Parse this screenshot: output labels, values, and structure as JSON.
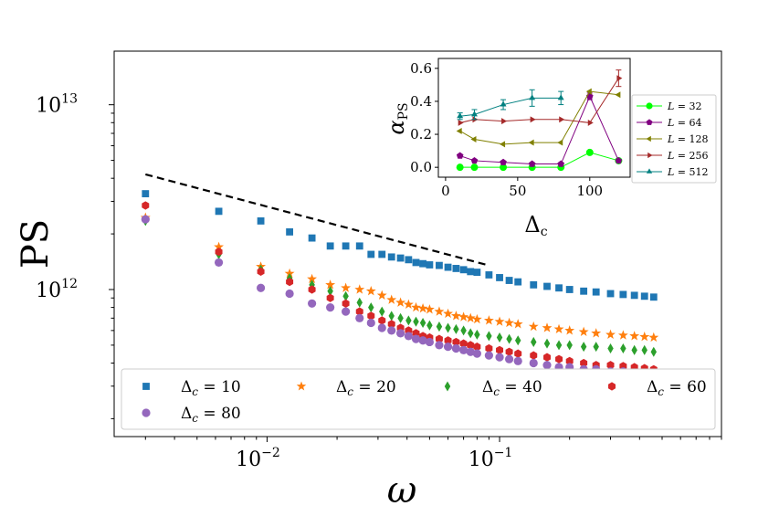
{
  "chart_data": [
    {
      "type": "scatter",
      "title": "",
      "xlabel": "ω",
      "ylabel": "PS",
      "xscale": "log",
      "yscale": "log",
      "xlim": [
        0.0022,
        0.9
      ],
      "ylim": [
        160000000000.0,
        19500000000000.0
      ],
      "x_ticks": [
        {
          "value": 0.01,
          "base": "10",
          "exp": "−2"
        },
        {
          "value": 0.1,
          "base": "10",
          "exp": "−1"
        }
      ],
      "y_ticks": [
        {
          "value": 1000000000000.0,
          "base": "10",
          "exp": "12"
        },
        {
          "value": 10000000000000.0,
          "base": "10",
          "exp": "13"
        }
      ],
      "legend": {
        "placement": "bottom",
        "columns": 4
      },
      "reference_line": {
        "style": "dashed",
        "color": "#000000",
        "x": [
          0.003,
          0.09
        ],
        "y": [
          4200000000000.0,
          1350000000000.0
        ]
      },
      "series": [
        {
          "name": "Δc = 10",
          "legend_base": "Δ",
          "legend_sub": "c",
          "legend_value": " = 10",
          "marker": "square",
          "color": "#1f77b4",
          "x": [
            0.003,
            0.0062,
            0.0094,
            0.0125,
            0.0156,
            0.0187,
            0.0218,
            0.025,
            0.028,
            0.0312,
            0.0343,
            0.0375,
            0.0406,
            0.0437,
            0.0468,
            0.05,
            0.055,
            0.06,
            0.065,
            0.07,
            0.075,
            0.08,
            0.09,
            0.1,
            0.11,
            0.12,
            0.14,
            0.16,
            0.18,
            0.2,
            0.23,
            0.26,
            0.3,
            0.34,
            0.38,
            0.42,
            0.46
          ],
          "y": [
            3300000000000.0,
            2650000000000.0,
            2350000000000.0,
            2050000000000.0,
            1900000000000.0,
            1720000000000.0,
            1720000000000.0,
            1720000000000.0,
            1550000000000.0,
            1550000000000.0,
            1500000000000.0,
            1480000000000.0,
            1450000000000.0,
            1400000000000.0,
            1380000000000.0,
            1360000000000.0,
            1350000000000.0,
            1320000000000.0,
            1300000000000.0,
            1280000000000.0,
            1250000000000.0,
            1240000000000.0,
            1200000000000.0,
            1160000000000.0,
            1120000000000.0,
            1100000000000.0,
            1060000000000.0,
            1040000000000.0,
            1020000000000.0,
            1000000000000.0,
            980000000000.0,
            970000000000.0,
            950000000000.0,
            940000000000.0,
            930000000000.0,
            920000000000.0,
            910000000000.0
          ]
        },
        {
          "name": "Δc = 20",
          "legend_base": "Δ",
          "legend_sub": "c",
          "legend_value": " = 20",
          "marker": "star",
          "color": "#ff7f0e",
          "x": [
            0.003,
            0.0062,
            0.0094,
            0.0125,
            0.0156,
            0.0187,
            0.0218,
            0.025,
            0.028,
            0.0312,
            0.0343,
            0.0375,
            0.0406,
            0.0437,
            0.0468,
            0.05,
            0.055,
            0.06,
            0.065,
            0.07,
            0.075,
            0.08,
            0.09,
            0.1,
            0.11,
            0.12,
            0.14,
            0.16,
            0.18,
            0.2,
            0.23,
            0.26,
            0.3,
            0.34,
            0.38,
            0.42,
            0.46
          ],
          "y": [
            2450000000000.0,
            1700000000000.0,
            1330000000000.0,
            1220000000000.0,
            1140000000000.0,
            1060000000000.0,
            1020000000000.0,
            1000000000000.0,
            980000000000.0,
            930000000000.0,
            880000000000.0,
            850000000000.0,
            830000000000.0,
            800000000000.0,
            790000000000.0,
            780000000000.0,
            760000000000.0,
            740000000000.0,
            720000000000.0,
            710000000000.0,
            700000000000.0,
            690000000000.0,
            680000000000.0,
            670000000000.0,
            660000000000.0,
            650000000000.0,
            630000000000.0,
            620000000000.0,
            610000000000.0,
            600000000000.0,
            590000000000.0,
            580000000000.0,
            570000000000.0,
            565000000000.0,
            560000000000.0,
            555000000000.0,
            550000000000.0
          ]
        },
        {
          "name": "Δc = 40",
          "legend_base": "Δ",
          "legend_sub": "c",
          "legend_value": " = 40",
          "marker": "diamond",
          "color": "#2ca02c",
          "x": [
            0.003,
            0.0062,
            0.0094,
            0.0125,
            0.0156,
            0.0187,
            0.0218,
            0.025,
            0.028,
            0.0312,
            0.0343,
            0.0375,
            0.0406,
            0.0437,
            0.0468,
            0.05,
            0.055,
            0.06,
            0.065,
            0.07,
            0.075,
            0.08,
            0.09,
            0.1,
            0.11,
            0.12,
            0.14,
            0.16,
            0.18,
            0.2,
            0.23,
            0.26,
            0.3,
            0.34,
            0.38,
            0.42,
            0.46
          ],
          "y": [
            2350000000000.0,
            1550000000000.0,
            1280000000000.0,
            1150000000000.0,
            1060000000000.0,
            980000000000.0,
            920000000000.0,
            850000000000.0,
            800000000000.0,
            760000000000.0,
            720000000000.0,
            700000000000.0,
            680000000000.0,
            670000000000.0,
            660000000000.0,
            640000000000.0,
            630000000000.0,
            620000000000.0,
            610000000000.0,
            600000000000.0,
            580000000000.0,
            570000000000.0,
            560000000000.0,
            550000000000.0,
            540000000000.0,
            530000000000.0,
            520000000000.0,
            510000000000.0,
            500000000000.0,
            500000000000.0,
            490000000000.0,
            490000000000.0,
            480000000000.0,
            480000000000.0,
            470000000000.0,
            470000000000.0,
            460000000000.0
          ]
        },
        {
          "name": "Δc = 60",
          "legend_base": "Δ",
          "legend_sub": "c",
          "legend_value": " = 60",
          "marker": "hexagon",
          "color": "#d62728",
          "x": [
            0.003,
            0.0062,
            0.0094,
            0.0125,
            0.0156,
            0.0187,
            0.0218,
            0.025,
            0.028,
            0.0312,
            0.0343,
            0.0375,
            0.0406,
            0.0437,
            0.0468,
            0.05,
            0.055,
            0.06,
            0.065,
            0.07,
            0.075,
            0.08,
            0.09,
            0.1,
            0.11,
            0.12,
            0.14,
            0.16,
            0.18,
            0.2,
            0.23,
            0.26,
            0.3,
            0.34,
            0.38,
            0.42,
            0.46
          ],
          "y": [
            2850000000000.0,
            1600000000000.0,
            1250000000000.0,
            1100000000000.0,
            1000000000000.0,
            900000000000.0,
            840000000000.0,
            760000000000.0,
            720000000000.0,
            680000000000.0,
            650000000000.0,
            620000000000.0,
            600000000000.0,
            580000000000.0,
            560000000000.0,
            550000000000.0,
            540000000000.0,
            530000000000.0,
            520000000000.0,
            510000000000.0,
            500000000000.0,
            490000000000.0,
            480000000000.0,
            470000000000.0,
            460000000000.0,
            450000000000.0,
            440000000000.0,
            430000000000.0,
            420000000000.0,
            410000000000.0,
            400000000000.0,
            390000000000.0,
            390000000000.0,
            385000000000.0,
            380000000000.0,
            375000000000.0,
            370000000000.0
          ]
        },
        {
          "name": "Δc = 80",
          "legend_base": "Δ",
          "legend_sub": "c",
          "legend_value": " = 80",
          "marker": "circle",
          "color": "#9467bd",
          "x": [
            0.003,
            0.0062,
            0.0094,
            0.0125,
            0.0156,
            0.0187,
            0.0218,
            0.025,
            0.028,
            0.0312,
            0.0343,
            0.0375,
            0.0406,
            0.0437,
            0.0468,
            0.05,
            0.055,
            0.06,
            0.065,
            0.07,
            0.075,
            0.08,
            0.09,
            0.1,
            0.11,
            0.12,
            0.14,
            0.16,
            0.18,
            0.2,
            0.23,
            0.26,
            0.3,
            0.34,
            0.38,
            0.42,
            0.46
          ],
          "y": [
            2400000000000.0,
            1400000000000.0,
            1020000000000.0,
            950000000000.0,
            840000000000.0,
            800000000000.0,
            760000000000.0,
            700000000000.0,
            660000000000.0,
            620000000000.0,
            600000000000.0,
            580000000000.0,
            560000000000.0,
            540000000000.0,
            530000000000.0,
            520000000000.0,
            500000000000.0,
            490000000000.0,
            480000000000.0,
            470000000000.0,
            460000000000.0,
            450000000000.0,
            440000000000.0,
            430000000000.0,
            420000000000.0,
            410000000000.0,
            400000000000.0,
            390000000000.0,
            380000000000.0,
            380000000000.0,
            370000000000.0,
            370000000000.0,
            360000000000.0,
            360000000000.0,
            355000000000.0,
            350000000000.0,
            350000000000.0
          ]
        }
      ]
    },
    {
      "type": "line",
      "title": "",
      "xlabel_base": "Δ",
      "xlabel_sub": "c",
      "ylabel_base": "α",
      "ylabel_sub": "PS",
      "xlim": [
        -5,
        128
      ],
      "ylim": [
        -0.06,
        0.66
      ],
      "x_ticks": [
        0,
        50,
        100
      ],
      "y_ticks": [
        0.0,
        0.2,
        0.4,
        0.6
      ],
      "x_tick_labels": [
        "0",
        "50",
        "100"
      ],
      "y_tick_labels": [
        "0.0",
        "0.2",
        "0.4",
        "0.6"
      ],
      "legend": {
        "placement": "outside-right"
      },
      "series": [
        {
          "name": "L = 32",
          "legend_base": "L",
          "legend_value": " = 32",
          "marker": "circle",
          "color": "#00ff00",
          "x": [
            10,
            20,
            40,
            60,
            80,
            100,
            120
          ],
          "y": [
            0.0,
            0.0,
            0.0,
            0.0,
            0.0,
            0.09,
            0.04
          ],
          "err": [
            0,
            0,
            0,
            0,
            0,
            0,
            0
          ]
        },
        {
          "name": "L = 64",
          "legend_base": "L",
          "legend_value": " = 64",
          "marker": "pentagon",
          "color": "#800080",
          "x": [
            10,
            20,
            40,
            60,
            80,
            100,
            120
          ],
          "y": [
            0.07,
            0.04,
            0.03,
            0.02,
            0.02,
            0.43,
            0.04
          ],
          "err": [
            0,
            0,
            0,
            0,
            0,
            0.02,
            0
          ]
        },
        {
          "name": "L = 128",
          "legend_base": "L",
          "legend_value": " = 128",
          "marker": "triangle-left",
          "color": "#808000",
          "x": [
            10,
            20,
            40,
            60,
            80,
            100,
            120
          ],
          "y": [
            0.22,
            0.17,
            0.14,
            0.15,
            0.15,
            0.46,
            0.44
          ],
          "err": [
            0,
            0,
            0,
            0,
            0,
            0,
            0
          ]
        },
        {
          "name": "L = 256",
          "legend_base": "L",
          "legend_value": " = 256",
          "marker": "triangle-right",
          "color": "#a52a2a",
          "x": [
            10,
            20,
            40,
            60,
            80,
            100,
            120
          ],
          "y": [
            0.27,
            0.29,
            0.28,
            0.29,
            0.29,
            0.27,
            0.54
          ],
          "err": [
            0,
            0,
            0,
            0,
            0,
            0,
            0.05
          ]
        },
        {
          "name": "L = 512",
          "legend_base": "L",
          "legend_value": " = 512",
          "marker": "triangle-up",
          "color": "#008080",
          "x": [
            10,
            20,
            40,
            60,
            80
          ],
          "y": [
            0.31,
            0.32,
            0.38,
            0.42,
            0.42
          ],
          "err": [
            0.02,
            0.03,
            0.03,
            0.05,
            0.04
          ]
        }
      ]
    }
  ]
}
